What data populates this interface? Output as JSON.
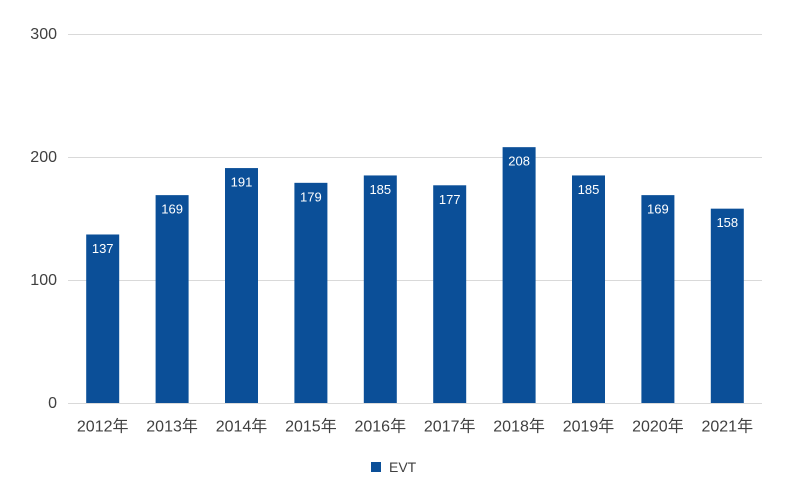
{
  "colors": {
    "bar": "#0b4f98",
    "grid": "#d9d9d9",
    "text": "#404040",
    "data_label": "#ffffff"
  },
  "chart_data": {
    "type": "bar",
    "title": "",
    "xlabel": "",
    "ylabel": "",
    "categories": [
      "2012年",
      "2013年",
      "2014年",
      "2015年",
      "2016年",
      "2017年",
      "2018年",
      "2019年",
      "2020年",
      "2021年"
    ],
    "series": [
      {
        "name": "EVT",
        "values": [
          137,
          169,
          191,
          179,
          185,
          177,
          208,
          185,
          169,
          158
        ]
      }
    ],
    "ylim": [
      0,
      300
    ],
    "yticks": [
      0,
      100,
      200,
      300
    ],
    "grid": true,
    "legend": "bottom",
    "data_labels": true
  }
}
